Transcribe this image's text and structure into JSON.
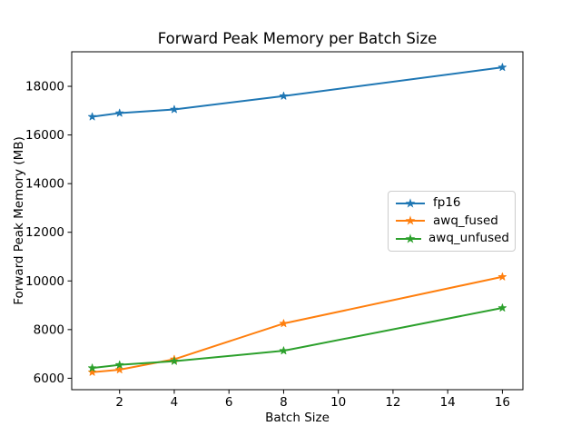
{
  "chart_data": {
    "type": "line",
    "title": "Forward Peak Memory per Batch Size",
    "xlabel": "Batch Size",
    "ylabel": "Forward Peak Memory (MB)",
    "x": [
      1,
      2,
      4,
      8,
      16
    ],
    "series": [
      {
        "name": "fp16",
        "color": "#1f77b4",
        "values": [
          16750,
          16900,
          17050,
          17600,
          18780
        ]
      },
      {
        "name": "awq_fused",
        "color": "#ff7f0e",
        "values": [
          6250,
          6350,
          6780,
          8250,
          10170
        ]
      },
      {
        "name": "awq_unfused",
        "color": "#2ca02c",
        "values": [
          6420,
          6550,
          6700,
          7130,
          8890
        ]
      }
    ],
    "marker": "star",
    "xticks": [
      2,
      4,
      6,
      8,
      10,
      12,
      14,
      16
    ],
    "yticks": [
      6000,
      8000,
      10000,
      12000,
      14000,
      16000,
      18000
    ],
    "xlim": [
      0.25,
      16.75
    ],
    "ylim": [
      5530,
      19420
    ],
    "grid": false,
    "legend_position": "center-right",
    "background_color": "#ffffff",
    "spine_color": "#000000"
  }
}
